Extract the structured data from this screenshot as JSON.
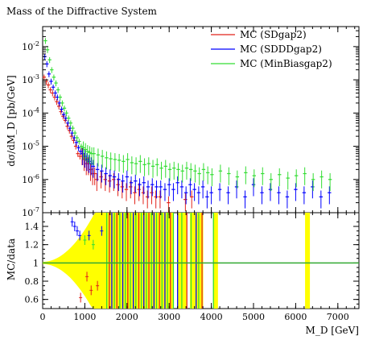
{
  "chart_data": {
    "type": "scatter",
    "title": "Mass of the Diffractive System",
    "ylabel": "dσ/dM_D [pb/GeV]",
    "xlabel": "M_D [GeV]",
    "ratio_ylabel": "MC/data",
    "xlim": [
      0,
      7500
    ],
    "ylim_log": [
      1e-07,
      0.04
    ],
    "ratio_ylim": [
      0.5,
      1.55
    ],
    "main_y_ticks": [
      {
        "value": 1e-07,
        "label": "10^-7"
      },
      {
        "value": 1e-06,
        "label": "10^-6"
      },
      {
        "value": 1e-05,
        "label": "10^-5"
      },
      {
        "value": 0.0001,
        "label": "10^-4"
      },
      {
        "value": 0.001,
        "label": "10^-3"
      },
      {
        "value": 0.01,
        "label": "10^-2"
      }
    ],
    "ratio_y_ticks": [
      {
        "value": 0.6,
        "label": "0.6"
      },
      {
        "value": 0.8,
        "label": "0.8"
      },
      {
        "value": 1.0,
        "label": "1"
      },
      {
        "value": 1.2,
        "label": "1.2"
      },
      {
        "value": 1.4,
        "label": "1.4"
      }
    ],
    "x_ticks": [
      {
        "value": 0,
        "label": "0"
      },
      {
        "value": 1000,
        "label": "1000"
      },
      {
        "value": 2000,
        "label": "2000"
      },
      {
        "value": 3000,
        "label": "3000"
      },
      {
        "value": 4000,
        "label": "4000"
      },
      {
        "value": 5000,
        "label": "5000"
      },
      {
        "value": 6000,
        "label": "6000"
      },
      {
        "value": 7000,
        "label": "7000"
      }
    ],
    "legend_position": "top-right",
    "series": [
      {
        "name": "MC (SDgap2)",
        "color": "#e2231a",
        "points": [
          [
            50,
            0.0012
          ],
          [
            100,
            0.0009
          ],
          [
            150,
            0.0007
          ],
          [
            200,
            0.0005
          ],
          [
            250,
            0.0004
          ],
          [
            300,
            0.0003
          ],
          [
            350,
            0.00022
          ],
          [
            400,
            0.00016
          ],
          [
            450,
            0.00011
          ],
          [
            500,
            8e-05
          ],
          [
            550,
            6e-05
          ],
          [
            600,
            4e-05
          ],
          [
            650,
            3e-05
          ],
          [
            700,
            2e-05
          ],
          [
            750,
            1.5e-05
          ],
          [
            800,
            1e-05
          ],
          [
            850,
            6e-06
          ],
          [
            900,
            5e-06
          ],
          [
            950,
            6e-06
          ],
          [
            1000,
            4e-06
          ],
          [
            1050,
            3e-06
          ],
          [
            1100,
            3e-06
          ],
          [
            1150,
            2e-06
          ],
          [
            1200,
            1.5e-06
          ],
          [
            1250,
            1.5e-06
          ],
          [
            1300,
            1e-06
          ],
          [
            1400,
            1.2e-06
          ],
          [
            1500,
            1e-06
          ],
          [
            1600,
            9e-07
          ],
          [
            1700,
            1e-06
          ],
          [
            1800,
            7e-07
          ],
          [
            1900,
            6e-07
          ],
          [
            2000,
            5e-07
          ],
          [
            2100,
            6e-07
          ],
          [
            2200,
            4e-07
          ],
          [
            2300,
            5e-07
          ],
          [
            2400,
            4e-07
          ],
          [
            2500,
            3e-07
          ],
          [
            2600,
            4e-07
          ],
          [
            2700,
            3e-07
          ],
          [
            2800,
            3e-07
          ],
          [
            3000,
            2e-07
          ],
          [
            3400,
            2.5e-07
          ],
          [
            3550,
            3e-07
          ]
        ]
      },
      {
        "name": "MC (SDDDgap2)",
        "color": "#0000ff",
        "points": [
          [
            50,
            0.005
          ],
          [
            100,
            0.003
          ],
          [
            150,
            0.0015
          ],
          [
            200,
            0.0009
          ],
          [
            250,
            0.0006
          ],
          [
            300,
            0.0004
          ],
          [
            350,
            0.0003
          ],
          [
            400,
            0.0002
          ],
          [
            450,
            0.00013
          ],
          [
            500,
            9e-05
          ],
          [
            550,
            7e-05
          ],
          [
            600,
            5e-05
          ],
          [
            650,
            3.5e-05
          ],
          [
            700,
            2.5e-05
          ],
          [
            750,
            1.8e-05
          ],
          [
            800,
            1.3e-05
          ],
          [
            850,
            9e-06
          ],
          [
            900,
            7e-06
          ],
          [
            950,
            6e-06
          ],
          [
            1000,
            5e-06
          ],
          [
            1050,
            4e-06
          ],
          [
            1100,
            3.5e-06
          ],
          [
            1150,
            3e-06
          ],
          [
            1200,
            2.5e-06
          ],
          [
            1300,
            2e-06
          ],
          [
            1400,
            1.8e-06
          ],
          [
            1500,
            1.5e-06
          ],
          [
            1600,
            1.3e-06
          ],
          [
            1700,
            1.2e-06
          ],
          [
            1800,
            1e-06
          ],
          [
            1900,
            9e-07
          ],
          [
            2000,
            1.2e-06
          ],
          [
            2100,
            8e-07
          ],
          [
            2200,
            9e-07
          ],
          [
            2300,
            7e-07
          ],
          [
            2400,
            8e-07
          ],
          [
            2500,
            6e-07
          ],
          [
            2600,
            7e-07
          ],
          [
            2700,
            6e-07
          ],
          [
            2800,
            6e-07
          ],
          [
            2900,
            5e-07
          ],
          [
            3000,
            7e-07
          ],
          [
            3100,
            5e-07
          ],
          [
            3200,
            8e-07
          ],
          [
            3300,
            6e-07
          ],
          [
            3400,
            4e-07
          ],
          [
            3500,
            7e-07
          ],
          [
            3600,
            5e-07
          ],
          [
            3700,
            4e-07
          ],
          [
            3800,
            6e-07
          ],
          [
            3900,
            3e-07
          ],
          [
            4000,
            4e-07
          ],
          [
            4200,
            5e-07
          ],
          [
            4400,
            4e-07
          ],
          [
            4600,
            6e-07
          ],
          [
            4800,
            3e-07
          ],
          [
            5000,
            7e-07
          ],
          [
            5200,
            4e-07
          ],
          [
            5400,
            5e-07
          ],
          [
            5600,
            4e-07
          ],
          [
            5800,
            3e-07
          ],
          [
            6000,
            5e-07
          ],
          [
            6200,
            4e-07
          ],
          [
            6400,
            6e-07
          ],
          [
            6600,
            3e-07
          ],
          [
            6800,
            4e-07
          ]
        ]
      },
      {
        "name": "MC (MinBiasgap2)",
        "color": "#33dd33",
        "points": [
          [
            50,
            0.015
          ],
          [
            100,
            0.008
          ],
          [
            150,
            0.004
          ],
          [
            200,
            0.002
          ],
          [
            250,
            0.0012
          ],
          [
            300,
            0.0008
          ],
          [
            350,
            0.0005
          ],
          [
            400,
            0.0003
          ],
          [
            450,
            0.0002
          ],
          [
            500,
            0.00014
          ],
          [
            550,
            0.0001
          ],
          [
            600,
            7e-05
          ],
          [
            650,
            5e-05
          ],
          [
            700,
            3.5e-05
          ],
          [
            750,
            2.5e-05
          ],
          [
            800,
            1.8e-05
          ],
          [
            850,
            1.4e-05
          ],
          [
            900,
            1e-05
          ],
          [
            950,
            9e-06
          ],
          [
            1000,
            8e-06
          ],
          [
            1050,
            7e-06
          ],
          [
            1100,
            6.5e-06
          ],
          [
            1150,
            6e-06
          ],
          [
            1200,
            6e-06
          ],
          [
            1300,
            5.5e-06
          ],
          [
            1400,
            5e-06
          ],
          [
            1500,
            4.5e-06
          ],
          [
            1600,
            4.2e-06
          ],
          [
            1700,
            4e-06
          ],
          [
            1800,
            3.8e-06
          ],
          [
            1900,
            3.5e-06
          ],
          [
            2000,
            4e-06
          ],
          [
            2100,
            3.2e-06
          ],
          [
            2200,
            3e-06
          ],
          [
            2300,
            3.5e-06
          ],
          [
            2400,
            2.8e-06
          ],
          [
            2500,
            3e-06
          ],
          [
            2600,
            2.5e-06
          ],
          [
            2700,
            2.8e-06
          ],
          [
            2800,
            2.2e-06
          ],
          [
            2900,
            2.5e-06
          ],
          [
            3000,
            2e-06
          ],
          [
            3100,
            2.2e-06
          ],
          [
            3200,
            2e-06
          ],
          [
            3300,
            1.8e-06
          ],
          [
            3400,
            2.2e-06
          ],
          [
            3500,
            2e-06
          ],
          [
            3600,
            1.8e-06
          ],
          [
            3700,
            1.5e-06
          ],
          [
            3800,
            2e-06
          ],
          [
            3900,
            1.6e-06
          ],
          [
            4000,
            1.4e-06
          ],
          [
            4200,
            1.8e-06
          ],
          [
            4400,
            1.5e-06
          ],
          [
            4600,
            1.2e-06
          ],
          [
            4800,
            1.6e-06
          ],
          [
            5000,
            1.3e-06
          ],
          [
            5200,
            1.5e-06
          ],
          [
            5400,
            1e-06
          ],
          [
            5600,
            1.4e-06
          ],
          [
            5800,
            1.1e-06
          ],
          [
            6000,
            1.3e-06
          ],
          [
            6200,
            1.5e-06
          ],
          [
            6400,
            1e-06
          ],
          [
            6600,
            1.2e-06
          ],
          [
            6800,
            1e-06
          ]
        ]
      }
    ]
  },
  "colors": {
    "data_band": "#ffff00",
    "unity_line": "#33aa33"
  }
}
